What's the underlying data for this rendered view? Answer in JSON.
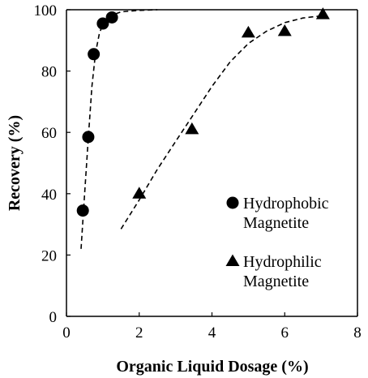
{
  "chart_data": {
    "type": "scatter",
    "xlabel": "Organic Liquid Dosage (%)",
    "ylabel": "Recovery (%)",
    "xlim": [
      0,
      8
    ],
    "ylim": [
      0,
      100
    ],
    "xticks": [
      0,
      2,
      4,
      6,
      8
    ],
    "yticks": [
      0,
      20,
      40,
      60,
      80,
      100
    ],
    "grid": false,
    "legend_position": "right",
    "series": [
      {
        "name": "Hydrophobic Magnetite",
        "legend_lines": [
          "Hydrophobic",
          "Magnetite"
        ],
        "marker": "circle",
        "points": [
          {
            "x": 0.45,
            "y": 34.5
          },
          {
            "x": 0.6,
            "y": 58.5
          },
          {
            "x": 0.75,
            "y": 85.5
          },
          {
            "x": 1.0,
            "y": 95.5
          },
          {
            "x": 1.25,
            "y": 97.5
          }
        ],
        "trend": [
          {
            "x": 0.4,
            "y": 22
          },
          {
            "x": 0.5,
            "y": 40
          },
          {
            "x": 0.6,
            "y": 58
          },
          {
            "x": 0.7,
            "y": 75
          },
          {
            "x": 0.8,
            "y": 86
          },
          {
            "x": 0.9,
            "y": 92
          },
          {
            "x": 1.0,
            "y": 95.5
          },
          {
            "x": 1.2,
            "y": 98
          },
          {
            "x": 1.5,
            "y": 99.3
          },
          {
            "x": 2.0,
            "y": 99.8
          },
          {
            "x": 2.5,
            "y": 100
          }
        ]
      },
      {
        "name": "Hydrophilic Magnetite",
        "legend_lines": [
          "Hydrophilic",
          "Magnetite"
        ],
        "marker": "triangle",
        "points": [
          {
            "x": 2.0,
            "y": 40
          },
          {
            "x": 3.45,
            "y": 61
          },
          {
            "x": 5.0,
            "y": 92.5
          },
          {
            "x": 6.0,
            "y": 93
          },
          {
            "x": 7.05,
            "y": 98.5
          }
        ],
        "trend": [
          {
            "x": 1.5,
            "y": 28.5
          },
          {
            "x": 2.0,
            "y": 38
          },
          {
            "x": 2.5,
            "y": 48
          },
          {
            "x": 3.0,
            "y": 57
          },
          {
            "x": 3.5,
            "y": 66
          },
          {
            "x": 4.0,
            "y": 75
          },
          {
            "x": 4.5,
            "y": 83
          },
          {
            "x": 5.0,
            "y": 89
          },
          {
            "x": 5.5,
            "y": 93
          },
          {
            "x": 6.0,
            "y": 95.8
          },
          {
            "x": 6.5,
            "y": 97.3
          },
          {
            "x": 7.0,
            "y": 98
          }
        ]
      }
    ]
  }
}
